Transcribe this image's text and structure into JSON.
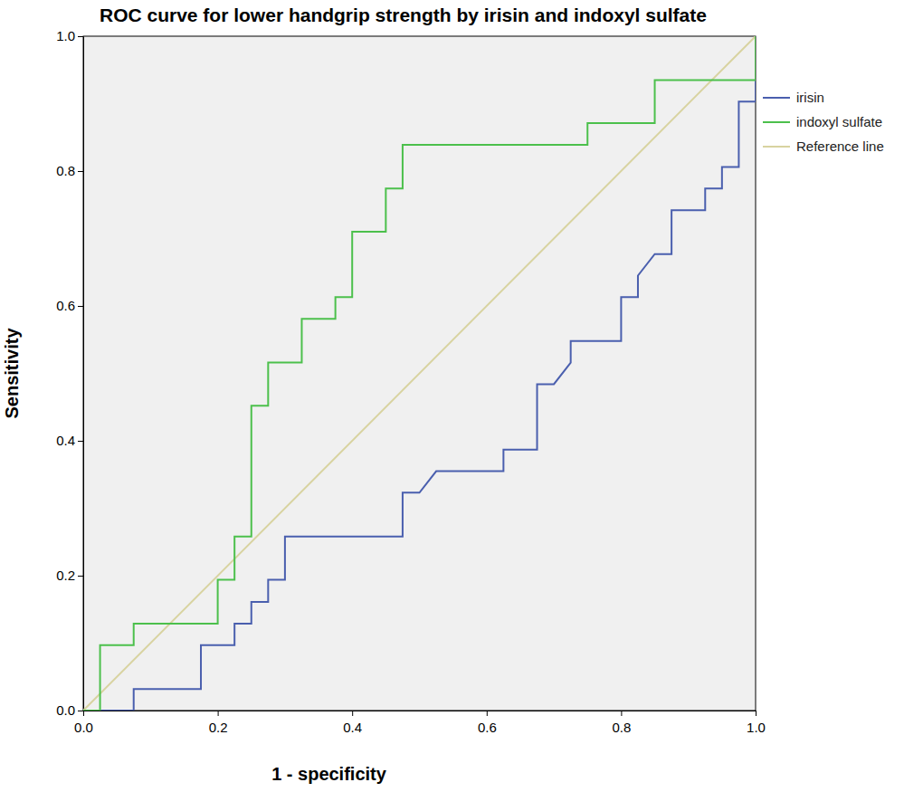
{
  "chart_data": {
    "type": "line",
    "title": "ROC curve for lower handgrip strength by irisin and indoxyl sulfate",
    "x_label": "1 - specificity",
    "y_label": "Sensitivity",
    "xlim": [
      0,
      1
    ],
    "ylim": [
      0,
      1
    ],
    "xticks": [
      {
        "value": 0,
        "label": "0.0"
      },
      {
        "value": 0.2,
        "label": "0.2"
      },
      {
        "value": 0.4,
        "label": "0.4"
      },
      {
        "value": 0.6,
        "label": "0.6"
      },
      {
        "value": 0.8,
        "label": "0.8"
      },
      {
        "value": 1,
        "label": "1.0"
      }
    ],
    "yticks": [
      {
        "value": 0,
        "label": "0.0"
      },
      {
        "value": 0.2,
        "label": "0.2"
      },
      {
        "value": 0.4,
        "label": "0.4"
      },
      {
        "value": 0.6,
        "label": "0.6"
      },
      {
        "value": 0.8,
        "label": "0.8"
      },
      {
        "value": 1,
        "label": "1.0"
      }
    ],
    "grid": false,
    "legend": "right",
    "series": [
      {
        "name": "irisin",
        "color": "#4a5fae",
        "x": [
          0,
          0.075,
          0.075,
          0.175,
          0.175,
          0.225,
          0.225,
          0.25,
          0.25,
          0.275,
          0.275,
          0.3,
          0.3,
          0.475,
          0.475,
          0.5,
          0.525,
          0.625,
          0.625,
          0.675,
          0.675,
          0.7,
          0.725,
          0.725,
          0.8,
          0.8,
          0.825,
          0.825,
          0.85,
          0.875,
          0.875,
          0.925,
          0.925,
          0.95,
          0.95,
          0.975,
          0.975,
          1,
          1
        ],
        "values": [
          0,
          0,
          0.032,
          0.032,
          0.097,
          0.097,
          0.129,
          0.129,
          0.161,
          0.161,
          0.194,
          0.194,
          0.258,
          0.258,
          0.323,
          0.323,
          0.355,
          0.355,
          0.387,
          0.387,
          0.484,
          0.484,
          0.516,
          0.548,
          0.548,
          0.613,
          0.613,
          0.645,
          0.677,
          0.677,
          0.742,
          0.742,
          0.774,
          0.774,
          0.806,
          0.806,
          0.903,
          0.903,
          1
        ]
      },
      {
        "name": "indoxyl sulfate",
        "color": "#4cc04c",
        "x": [
          0,
          0.025,
          0.025,
          0.075,
          0.075,
          0.2,
          0.2,
          0.225,
          0.225,
          0.25,
          0.25,
          0.275,
          0.275,
          0.325,
          0.325,
          0.375,
          0.375,
          0.4,
          0.4,
          0.45,
          0.45,
          0.475,
          0.475,
          0.75,
          0.75,
          0.85,
          0.85,
          1,
          1
        ],
        "values": [
          0,
          0,
          0.097,
          0.097,
          0.129,
          0.129,
          0.194,
          0.194,
          0.258,
          0.258,
          0.452,
          0.452,
          0.516,
          0.516,
          0.581,
          0.581,
          0.613,
          0.613,
          0.71,
          0.71,
          0.774,
          0.774,
          0.839,
          0.839,
          0.871,
          0.871,
          0.935,
          0.935,
          1
        ]
      },
      {
        "name": "Reference line",
        "color": "#d8d3a0",
        "x": [
          0,
          1
        ],
        "values": [
          0,
          1
        ]
      }
    ]
  }
}
